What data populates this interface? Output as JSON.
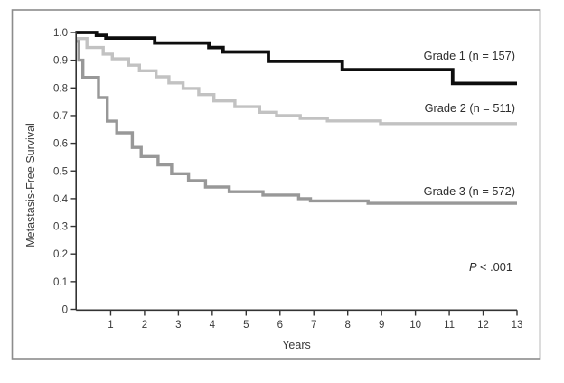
{
  "chart_data": {
    "type": "line",
    "subtype": "kaplan-meier-step",
    "title": "",
    "xlabel": "Years",
    "ylabel": "Metastasis-Free Survival",
    "xlim": [
      0,
      13
    ],
    "ylim": [
      0,
      1.0
    ],
    "grid": false,
    "legend_position": "inline-right",
    "frame_color": "#8c8c8c",
    "axis_color": "#333333",
    "x_ticks": [
      {
        "v": 1,
        "label": "1"
      },
      {
        "v": 2,
        "label": "2"
      },
      {
        "v": 3,
        "label": "3"
      },
      {
        "v": 4,
        "label": "4"
      },
      {
        "v": 5,
        "label": "5"
      },
      {
        "v": 6,
        "label": "6"
      },
      {
        "v": 7,
        "label": "7"
      },
      {
        "v": 8,
        "label": "8"
      },
      {
        "v": 9,
        "label": "9"
      },
      {
        "v": 10,
        "label": "10"
      },
      {
        "v": 11,
        "label": "11"
      },
      {
        "v": 12,
        "label": "12"
      },
      {
        "v": 13,
        "label": "13"
      }
    ],
    "y_ticks": [
      {
        "v": 1.0,
        "label": "1.0"
      },
      {
        "v": 0.9,
        "label": "0.9"
      },
      {
        "v": 0.8,
        "label": "0.8"
      },
      {
        "v": 0.7,
        "label": "0.7"
      },
      {
        "v": 0.6,
        "label": "0.6"
      },
      {
        "v": 0.5,
        "label": "0.5"
      },
      {
        "v": 0.4,
        "label": "0.4"
      },
      {
        "v": 0.3,
        "label": "0.3"
      },
      {
        "v": 0.2,
        "label": "0.2"
      },
      {
        "v": 0.1,
        "label": "0.1"
      },
      {
        "v": 0,
        "label": "0"
      }
    ],
    "series": [
      {
        "name": "Grade 1 (n = 157)",
        "color": "#0d0d0d",
        "stroke_width": 3.8,
        "points": [
          [
            0,
            1.0
          ],
          [
            0.58,
            0.99
          ],
          [
            0.86,
            0.98
          ],
          [
            2.3,
            0.962
          ],
          [
            3.9,
            0.946
          ],
          [
            4.32,
            0.93
          ],
          [
            5.66,
            0.896
          ],
          [
            7.84,
            0.866
          ],
          [
            11.1,
            0.816
          ]
        ]
      },
      {
        "name": "Grade 2 (n = 511)",
        "color": "#c2c2c2",
        "stroke_width": 3.4,
        "points": [
          [
            0,
            0.978
          ],
          [
            0.3,
            0.946
          ],
          [
            0.78,
            0.922
          ],
          [
            1.05,
            0.905
          ],
          [
            1.53,
            0.882
          ],
          [
            1.85,
            0.862
          ],
          [
            2.34,
            0.84
          ],
          [
            2.72,
            0.818
          ],
          [
            3.14,
            0.798
          ],
          [
            3.6,
            0.776
          ],
          [
            4.05,
            0.753
          ],
          [
            4.67,
            0.732
          ],
          [
            5.4,
            0.712
          ],
          [
            5.9,
            0.7
          ],
          [
            6.6,
            0.69
          ],
          [
            7.4,
            0.681
          ],
          [
            8.97,
            0.671
          ]
        ]
      },
      {
        "name": "Grade 3 (n = 572)",
        "color": "#989898",
        "stroke_width": 3.4,
        "points": [
          [
            0,
            0.968
          ],
          [
            0.06,
            0.9
          ],
          [
            0.18,
            0.838
          ],
          [
            0.64,
            0.765
          ],
          [
            0.9,
            0.68
          ],
          [
            1.18,
            0.638
          ],
          [
            1.64,
            0.585
          ],
          [
            1.9,
            0.552
          ],
          [
            2.4,
            0.522
          ],
          [
            2.8,
            0.49
          ],
          [
            3.3,
            0.465
          ],
          [
            3.8,
            0.442
          ],
          [
            4.5,
            0.425
          ],
          [
            5.5,
            0.413
          ],
          [
            6.55,
            0.4
          ],
          [
            6.9,
            0.392
          ],
          [
            8.6,
            0.383
          ]
        ]
      }
    ],
    "annotations": [
      {
        "p_italic": "P",
        "p_rest": " < .001"
      }
    ]
  }
}
